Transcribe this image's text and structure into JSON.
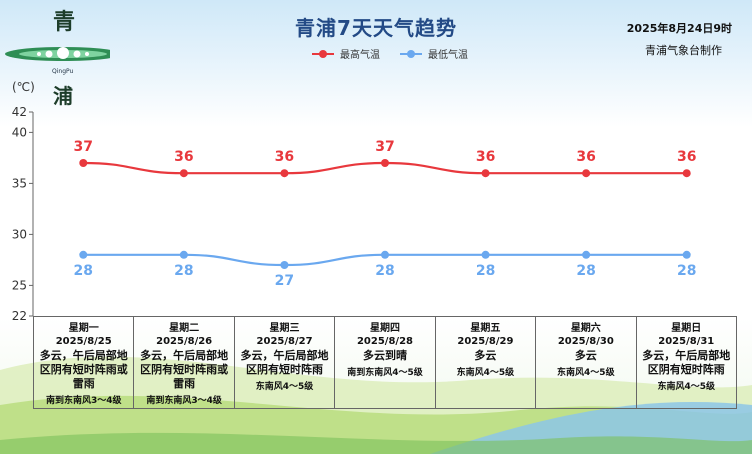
{
  "header": {
    "title": "青浦7天天气趋势",
    "date": "2025年8月24日9时",
    "org": "青浦气象台制作",
    "unit": "(℃)",
    "logo_char_top": "青",
    "logo_char_bottom": "浦",
    "logo_sub": "QingPu"
  },
  "legend": [
    {
      "label": "最高气温",
      "color": "#e8383d"
    },
    {
      "label": "最低气温",
      "color": "#6aa8ef"
    }
  ],
  "chart_data": {
    "type": "line",
    "categories": [
      "星期一",
      "星期二",
      "星期三",
      "星期四",
      "星期五",
      "星期六",
      "星期日"
    ],
    "series": [
      {
        "name": "最高气温",
        "color": "#e8383d",
        "values": [
          37,
          36,
          36,
          37,
          36,
          36,
          36
        ]
      },
      {
        "name": "最低气温",
        "color": "#6aa8ef",
        "values": [
          28,
          28,
          27,
          28,
          28,
          28,
          28
        ]
      }
    ],
    "ylim": [
      22,
      42
    ],
    "yticks": [
      22,
      25,
      30,
      35,
      40,
      42
    ],
    "grid": false,
    "legend_position": "top"
  },
  "days": [
    {
      "week": "星期一",
      "date": "2025/8/25",
      "weather": "多云，午后局部地区阴有短时阵雨或雷雨",
      "wind": "南到东南风3～4级"
    },
    {
      "week": "星期二",
      "date": "2025/8/26",
      "weather": "多云，午后局部地区阴有短时阵雨或雷雨",
      "wind": "南到东南风3～4级"
    },
    {
      "week": "星期三",
      "date": "2025/8/27",
      "weather": "多云，午后局部地区阴有短时阵雨",
      "wind": "东南风4～5级"
    },
    {
      "week": "星期四",
      "date": "2025/8/28",
      "weather": "多云到晴",
      "wind": "南到东南风4～5级"
    },
    {
      "week": "星期五",
      "date": "2025/8/29",
      "weather": "多云",
      "wind": "东南风4～5级"
    },
    {
      "week": "星期六",
      "date": "2025/8/30",
      "weather": "多云",
      "wind": "东南风4～5级"
    },
    {
      "week": "星期日",
      "date": "2025/8/31",
      "weather": "多云，午后局部地区阴有短时阵雨",
      "wind": "东南风4～5级"
    }
  ]
}
